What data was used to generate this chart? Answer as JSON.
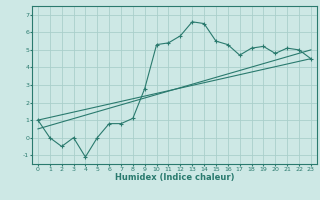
{
  "xlabel": "Humidex (Indice chaleur)",
  "background_color": "#cde8e5",
  "grid_color": "#aacfcb",
  "line_color": "#2a7a6e",
  "xlim": [
    -0.5,
    23.5
  ],
  "ylim": [
    -1.5,
    7.5
  ],
  "xticks": [
    0,
    1,
    2,
    3,
    4,
    5,
    6,
    7,
    8,
    9,
    10,
    11,
    12,
    13,
    14,
    15,
    16,
    17,
    18,
    19,
    20,
    21,
    22,
    23
  ],
  "yticks": [
    -1,
    0,
    1,
    2,
    3,
    4,
    5,
    6,
    7
  ],
  "main_x": [
    0,
    1,
    2,
    3,
    4,
    5,
    6,
    7,
    8,
    9,
    10,
    11,
    12,
    13,
    14,
    15,
    16,
    17,
    18,
    19,
    20,
    21,
    22,
    23
  ],
  "main_y": [
    1.0,
    0.0,
    -0.5,
    0.0,
    -1.1,
    0.0,
    0.8,
    0.8,
    1.1,
    2.8,
    5.3,
    5.4,
    5.8,
    6.6,
    6.5,
    5.5,
    5.3,
    4.7,
    5.1,
    5.2,
    4.8,
    5.1,
    5.0,
    4.5
  ],
  "line1_x": [
    0,
    23
  ],
  "line1_y": [
    1.0,
    4.5
  ],
  "line2_x": [
    0,
    23
  ],
  "line2_y": [
    0.5,
    5.0
  ]
}
